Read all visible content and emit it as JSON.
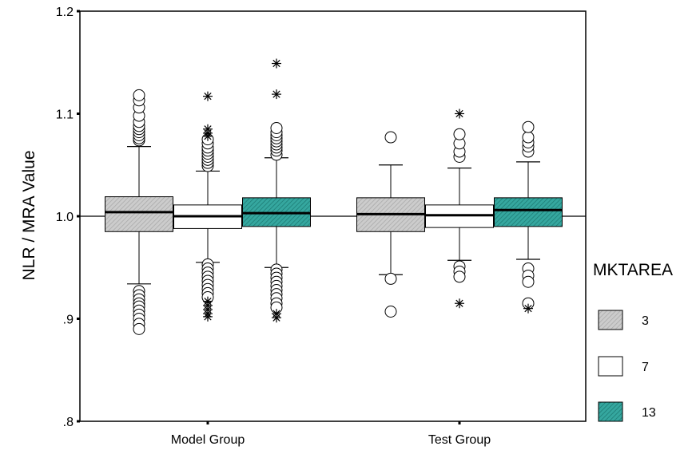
{
  "chart_data": {
    "type": "boxplot",
    "title": "",
    "xlabel": "",
    "ylabel": "NLR / MRA Value",
    "ylim": [
      0.8,
      1.2
    ],
    "yticks": [
      {
        "value": 0.8,
        "label": ".8"
      },
      {
        "value": 0.9,
        "label": ".9"
      },
      {
        "value": 1.0,
        "label": "1.0"
      },
      {
        "value": 1.1,
        "label": "1.1"
      },
      {
        "value": 1.2,
        "label": "1.2"
      }
    ],
    "reference_line": 1.0,
    "categories": [
      "Model Group",
      "Test Group"
    ],
    "legend": {
      "title": "MKTAREA",
      "placement": "right",
      "entries": [
        {
          "label": "3",
          "color": "#cccccc",
          "hatch": true
        },
        {
          "label": "7",
          "color": "#ffffff",
          "hatch": false
        },
        {
          "label": "13",
          "color": "#2e9c94",
          "hatch": true
        }
      ]
    },
    "series": [
      {
        "name": "3",
        "boxes": [
          {
            "category": "Model Group",
            "q1": 0.985,
            "median": 1.004,
            "q3": 1.019,
            "whisker_low": 0.934,
            "whisker_high": 1.068,
            "outliers": [
              1.074,
              1.076,
              1.079,
              1.082,
              1.085,
              1.088,
              1.092,
              1.098,
              1.106,
              1.113,
              1.118,
              0.927,
              0.923,
              0.919,
              0.915,
              0.912,
              0.908,
              0.904,
              0.9,
              0.895,
              0.89
            ],
            "extremes": []
          },
          {
            "category": "Test Group",
            "q1": 0.985,
            "median": 1.002,
            "q3": 1.018,
            "whisker_low": 0.943,
            "whisker_high": 1.05,
            "outliers": [
              1.077,
              0.939,
              0.907
            ],
            "extremes": []
          }
        ]
      },
      {
        "name": "7",
        "boxes": [
          {
            "category": "Model Group",
            "q1": 0.988,
            "median": 1.0,
            "q3": 1.011,
            "whisker_low": 0.955,
            "whisker_high": 1.044,
            "outliers": [
              1.049,
              1.052,
              1.055,
              1.058,
              1.061,
              1.064,
              1.067,
              1.071,
              1.075,
              0.953,
              0.949,
              0.945,
              0.941,
              0.937,
              0.933,
              0.929,
              0.925,
              0.921
            ],
            "extremes": [
              1.117,
              1.085,
              1.081,
              1.078,
              0.917,
              0.913,
              0.909,
              0.905,
              0.902
            ]
          },
          {
            "category": "Test Group",
            "q1": 0.989,
            "median": 1.001,
            "q3": 1.011,
            "whisker_low": 0.957,
            "whisker_high": 1.047,
            "outliers": [
              1.058,
              1.063,
              1.071,
              1.08,
              0.951,
              0.946,
              0.941
            ],
            "extremes": [
              1.1,
              0.915
            ]
          }
        ]
      },
      {
        "name": "13",
        "boxes": [
          {
            "category": "Model Group",
            "q1": 0.99,
            "median": 1.003,
            "q3": 1.018,
            "whisker_low": 0.95,
            "whisker_high": 1.057,
            "outliers": [
              1.06,
              1.064,
              1.067,
              1.07,
              1.073,
              1.076,
              1.079,
              1.082,
              1.086,
              0.948,
              0.944,
              0.94,
              0.936,
              0.932,
              0.928,
              0.924,
              0.92,
              0.915,
              0.911
            ],
            "extremes": [
              1.149,
              1.119,
              0.905,
              0.901
            ]
          },
          {
            "category": "Test Group",
            "q1": 0.99,
            "median": 1.006,
            "q3": 1.018,
            "whisker_low": 0.958,
            "whisker_high": 1.053,
            "outliers": [
              1.063,
              1.068,
              1.072,
              1.077,
              1.087,
              0.949,
              0.942,
              0.936,
              0.915
            ],
            "extremes": [
              0.91
            ]
          }
        ]
      }
    ]
  }
}
